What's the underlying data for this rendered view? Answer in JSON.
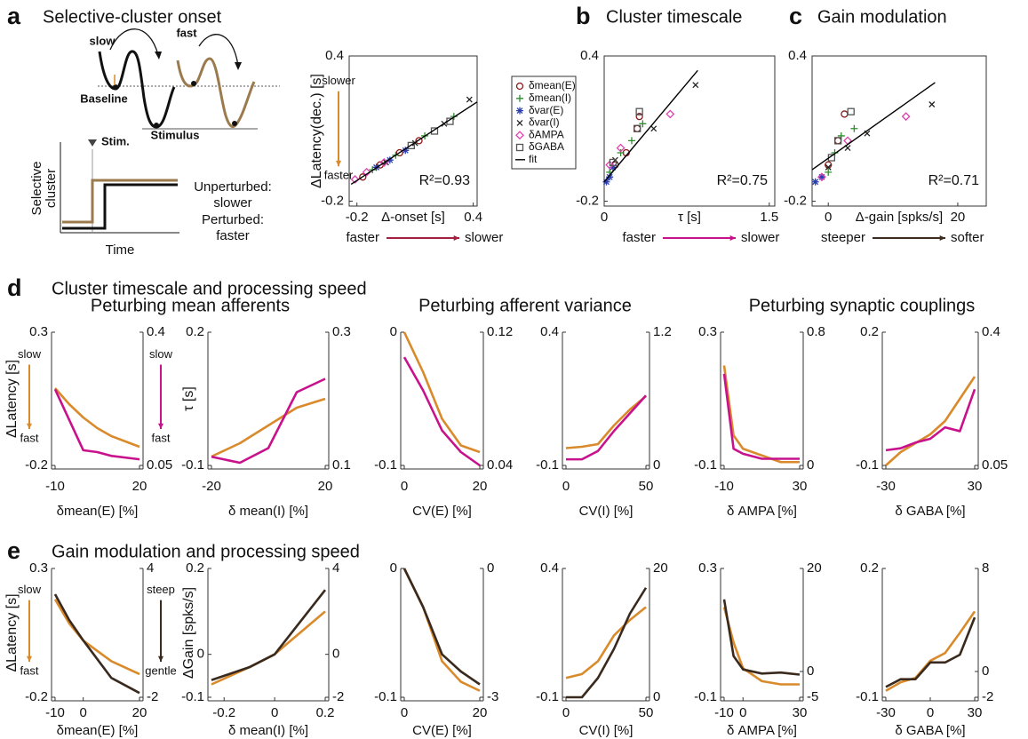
{
  "figure": {
    "panels": [
      {
        "letter": "a",
        "title": "Selective-cluster onset"
      },
      {
        "letter": "b",
        "title": "Cluster timescale"
      },
      {
        "letter": "c",
        "title": "Gain modulation"
      },
      {
        "letter": "d",
        "title": "Cluster timescale and processing speed"
      },
      {
        "letter": "e",
        "title": "Gain modulation and processing speed"
      }
    ],
    "groups": [
      "Peturbing mean afferents",
      "Peturbing afferent variance",
      "Peturbing synaptic couplings"
    ],
    "schematic": {
      "slow": "slow",
      "fast": "fast",
      "baseline": "Baseline",
      "stimulus": "Stimulus",
      "stim": "Stim.",
      "ylabel": [
        "Selective",
        "cluster"
      ],
      "xlabel": "Time",
      "unperturbed": "Unperturbed:",
      "unperturbed_speed": "slower",
      "perturbed": "Perturbed:",
      "perturbed_speed": "faster"
    }
  },
  "chart_data": [
    {
      "type": "scatter",
      "ylabel": "ΔLatency(dec.) [s]",
      "yends": [
        "slower",
        "faster"
      ],
      "xlabel": "Δ-onset [s]",
      "annotation": "R²=0.93",
      "direction": [
        "faster",
        "slower"
      ],
      "xcolor": "#a3213f",
      "ycolor": "#d98a2b",
      "legend": "right",
      "xlim": [
        -0.24,
        0.42
      ],
      "xticks": [
        -0.2,
        0.4
      ],
      "ylim": [
        -0.22,
        0.4
      ],
      "yticks": [
        -0.2,
        0.4
      ],
      "series": [
        {
          "name": "δmean(E)",
          "marker": "o",
          "color": "#8b1a1a",
          "x": [
            -0.17,
            -0.08,
            0.02,
            0.12
          ],
          "values": [
            -0.1,
            -0.05,
            0.0,
            0.05
          ]
        },
        {
          "name": "δmean(I)",
          "marker": "+",
          "color": "#2e8b2e",
          "x": [
            -0.12,
            0.0,
            0.15,
            0.3
          ],
          "values": [
            -0.07,
            -0.01,
            0.07,
            0.15
          ]
        },
        {
          "name": "δvar(E)",
          "marker": "*",
          "color": "#2b3fb0",
          "x": [
            -0.1,
            -0.03,
            0.05
          ],
          "values": [
            -0.06,
            -0.03,
            0.01
          ]
        },
        {
          "name": "δvar(I)",
          "marker": "x",
          "color": "#222222",
          "x": [
            -0.05,
            0.1,
            0.25,
            0.38
          ],
          "values": [
            -0.04,
            0.04,
            0.12,
            0.22
          ]
        },
        {
          "name": "δAMPA",
          "marker": "diamond",
          "color": "#e040b0",
          "x": [
            -0.21,
            -0.15,
            -0.06
          ],
          "values": [
            -0.11,
            -0.08,
            -0.04
          ]
        },
        {
          "name": "δGABA",
          "marker": "square",
          "color": "#555555",
          "x": [
            0.08,
            0.2,
            0.28
          ],
          "values": [
            0.03,
            0.09,
            0.13
          ]
        },
        {
          "name": "fit",
          "marker": "line",
          "color": "#000000",
          "x": [
            -0.23,
            0.42
          ],
          "values": [
            -0.13,
            0.21
          ]
        }
      ]
    },
    {
      "type": "scatter",
      "xlabel": "τ [s]",
      "annotation": "R²=0.75",
      "direction": [
        "faster",
        "slower"
      ],
      "xcolor": "#c8128c",
      "ycolor": "#d98a2b",
      "xlim": [
        0,
        1.55
      ],
      "xticks": [
        0,
        1.5
      ],
      "ylim": [
        -0.22,
        0.4
      ],
      "yticks": [
        -0.2,
        0.4
      ],
      "series": [
        {
          "marker": "o",
          "color": "#8b1a1a",
          "x": [
            0.1,
            0.2,
            0.3,
            0.32
          ],
          "values": [
            -0.05,
            0.0,
            0.1,
            0.15
          ]
        },
        {
          "marker": "+",
          "color": "#2e8b2e",
          "x": [
            0.05,
            0.15,
            0.25,
            0.35
          ],
          "values": [
            -0.08,
            0.0,
            0.05,
            0.12
          ]
        },
        {
          "marker": "*",
          "color": "#2b3fb0",
          "x": [
            0.02,
            0.05,
            0.08
          ],
          "values": [
            -0.12,
            -0.1,
            -0.06
          ]
        },
        {
          "marker": "x",
          "color": "#222222",
          "x": [
            0.1,
            0.45,
            0.83
          ],
          "values": [
            -0.03,
            0.1,
            0.28
          ]
        },
        {
          "marker": "diamond",
          "color": "#e040b0",
          "x": [
            0.05,
            0.15,
            0.6
          ],
          "values": [
            -0.05,
            0.02,
            0.16
          ]
        },
        {
          "marker": "square",
          "color": "#555555",
          "x": [
            0.08,
            0.3,
            0.32
          ],
          "values": [
            -0.04,
            0.1,
            0.17
          ]
        },
        {
          "marker": "line",
          "color": "#000000",
          "x": [
            0,
            0.85
          ],
          "values": [
            -0.12,
            0.34
          ]
        }
      ]
    },
    {
      "type": "scatter",
      "xlabel": "Δ-gain [spks/s]",
      "annotation": "R²=0.71",
      "direction": [
        "steeper",
        "softer"
      ],
      "xcolor": "#3d2b1f",
      "ycolor": "#d98a2b",
      "xlim": [
        -2.5,
        24.4
      ],
      "xticks": [
        0,
        20
      ],
      "ylim": [
        -0.22,
        0.4
      ],
      "yticks": [
        -0.2,
        0.4
      ],
      "series": [
        {
          "marker": "o",
          "color": "#8b1a1a",
          "x": [
            0,
            1.5,
            2.5
          ],
          "values": [
            -0.05,
            0.05,
            0.16
          ]
        },
        {
          "marker": "+",
          "color": "#2e8b2e",
          "x": [
            0,
            1,
            2,
            4
          ],
          "values": [
            -0.08,
            0.0,
            0.07,
            0.1
          ]
        },
        {
          "marker": "*",
          "color": "#2b3fb0",
          "x": [
            -2,
            -1
          ],
          "values": [
            -0.12,
            -0.1
          ]
        },
        {
          "marker": "x",
          "color": "#222222",
          "x": [
            0,
            3,
            6,
            16
          ],
          "values": [
            -0.06,
            0.02,
            0.08,
            0.2
          ]
        },
        {
          "marker": "diamond",
          "color": "#e040b0",
          "x": [
            -1,
            3,
            12
          ],
          "values": [
            -0.1,
            0.05,
            0.15
          ]
        },
        {
          "marker": "square",
          "color": "#555555",
          "x": [
            0.5,
            1.5,
            3.5
          ],
          "values": [
            -0.02,
            0.05,
            0.17
          ]
        },
        {
          "marker": "line",
          "color": "#000000",
          "x": [
            -2.5,
            16.5
          ],
          "values": [
            -0.07,
            0.29
          ]
        }
      ]
    },
    {
      "type": "line",
      "xlabel": "δmean(E) [%]",
      "ylabel": "ΔLatency [s]",
      "yends": [
        "slow",
        "fast"
      ],
      "y2label": "τ [s]",
      "y2ends": [
        "slow",
        "fast"
      ],
      "x": [
        -10,
        -5,
        0,
        5,
        10,
        20
      ],
      "xlim": [
        -10,
        20
      ],
      "xticks": [
        -10,
        20
      ],
      "ylim": [
        -0.2,
        0.3
      ],
      "yticks": [
        -0.2,
        0.3
      ],
      "y2lim": [
        0.05,
        0.4
      ],
      "y2ticks": [
        0.05,
        0.4
      ],
      "series": [
        {
          "color": "#d98a2b",
          "values": [
            0.09,
            0.03,
            -0.02,
            -0.06,
            -0.09,
            -0.13
          ]
        },
        {
          "color": "#c8128c",
          "axis": "y2",
          "values": [
            0.25,
            0.17,
            0.09,
            0.085,
            0.075,
            0.066
          ]
        }
      ]
    },
    {
      "type": "line",
      "xlabel": "δ mean(I) [%]",
      "x": [
        -20,
        -10,
        0,
        10,
        20
      ],
      "xlim": [
        -20,
        20
      ],
      "xticks": [
        -20,
        20
      ],
      "ylim": [
        -0.1,
        0.2
      ],
      "yticks": [
        -0.1,
        0.2
      ],
      "y2lim": [
        0.1,
        0.3
      ],
      "y2ticks": [
        0.1,
        0.3
      ],
      "series": [
        {
          "color": "#d98a2b",
          "values": [
            -0.08,
            -0.05,
            -0.01,
            0.03,
            0.05
          ]
        },
        {
          "color": "#c8128c",
          "axis": "y2",
          "values": [
            0.113,
            0.104,
            0.126,
            0.21,
            0.23
          ]
        }
      ]
    },
    {
      "type": "line",
      "xlabel": "CV(E) [%]",
      "x": [
        0,
        5,
        10,
        15,
        20
      ],
      "xlim": [
        0,
        20
      ],
      "xticks": [
        0,
        20
      ],
      "ylim": [
        -0.1,
        0
      ],
      "yticks": [
        -0.1,
        0
      ],
      "y2lim": [
        0.04,
        0.12
      ],
      "y2ticks": [
        0.04,
        0.12
      ],
      "series": [
        {
          "color": "#d98a2b",
          "values": [
            0,
            -0.03,
            -0.065,
            -0.085,
            -0.09
          ]
        },
        {
          "color": "#c8128c",
          "axis": "y2",
          "values": [
            0.105,
            0.085,
            0.061,
            0.048,
            0.04
          ]
        }
      ]
    },
    {
      "type": "line",
      "xlabel": "CV(I) [%]",
      "x": [
        0,
        10,
        20,
        30,
        40,
        50
      ],
      "xlim": [
        0,
        50
      ],
      "xticks": [
        0,
        50
      ],
      "ylim": [
        -0.1,
        0.4
      ],
      "yticks": [
        -0.1,
        0.4
      ],
      "y2lim": [
        0,
        1.2
      ],
      "y2ticks": [
        0,
        1.2
      ],
      "series": [
        {
          "color": "#d98a2b",
          "values": [
            -0.035,
            -0.03,
            -0.02,
            0.05,
            0.11,
            0.16
          ]
        },
        {
          "color": "#c8128c",
          "axis": "y2",
          "values": [
            0.055,
            0.055,
            0.13,
            0.31,
            0.47,
            0.63
          ]
        }
      ]
    },
    {
      "type": "line",
      "xlabel": "δ AMPA [%]",
      "x": [
        -10,
        -5,
        0,
        10,
        20,
        30
      ],
      "xlim": [
        -10,
        30
      ],
      "xticks": [
        -10,
        30
      ],
      "ylim": [
        -0.1,
        0.3
      ],
      "yticks": [
        -0.1,
        0.3
      ],
      "y2lim": [
        0,
        0.8
      ],
      "y2ticks": [
        0,
        0.8
      ],
      "series": [
        {
          "color": "#d98a2b",
          "values": [
            0.2,
            -0.01,
            -0.05,
            -0.07,
            -0.09,
            -0.09
          ]
        },
        {
          "color": "#c8128c",
          "axis": "y2",
          "values": [
            0.55,
            0.1,
            0.07,
            0.04,
            0.04,
            0.04
          ]
        }
      ]
    },
    {
      "type": "line",
      "xlabel": "δ GABA [%]",
      "x": [
        -30,
        -20,
        -10,
        0,
        10,
        20,
        30
      ],
      "xlim": [
        -30,
        30
      ],
      "xticks": [
        -30,
        30
      ],
      "ylim": [
        -0.1,
        0.2
      ],
      "yticks": [
        -0.1,
        0.2
      ],
      "y2lim": [
        0.05,
        0.4
      ],
      "y2ticks": [
        0.05,
        0.4
      ],
      "series": [
        {
          "color": "#d98a2b",
          "values": [
            -0.1,
            -0.07,
            -0.05,
            -0.03,
            0.0,
            0.05,
            0.1
          ]
        },
        {
          "color": "#c8128c",
          "axis": "y2",
          "values": [
            0.09,
            0.095,
            0.11,
            0.12,
            0.15,
            0.14,
            0.25
          ]
        }
      ]
    },
    {
      "type": "line",
      "xlabel": "δmean(E) [%]",
      "ylabel": "ΔLatency [s]",
      "yends": [
        "slow",
        "fast"
      ],
      "y2label": "ΔGain [spks/s]",
      "y2ends": [
        "steep",
        "gentle"
      ],
      "x": [
        -10,
        -5,
        0,
        10,
        20
      ],
      "xlim": [
        -10,
        20
      ],
      "xticks": [
        -10,
        0,
        20
      ],
      "ylim": [
        -0.2,
        0.3
      ],
      "yticks": [
        -0.2,
        0.3
      ],
      "y2lim": [
        -2,
        4
      ],
      "y2ticks": [
        -2,
        4
      ],
      "series": [
        {
          "color": "#d98a2b",
          "values": [
            0.18,
            0.087,
            0.02,
            -0.06,
            -0.11
          ]
        },
        {
          "color": "#3a2a1e",
          "axis": "y2",
          "values": [
            2.8,
            1.6,
            0.65,
            -1.1,
            -1.8
          ]
        }
      ]
    },
    {
      "type": "line",
      "xlabel": "δ mean(I) [%]",
      "x": [
        -0.25,
        -0.1,
        0,
        0.1,
        0.2
      ],
      "xlim": [
        -0.25,
        0.2
      ],
      "xticks": [
        -0.2,
        0,
        0.2
      ],
      "ylim": [
        -0.1,
        0.2
      ],
      "yticks": [
        -0.1,
        0,
        0.2
      ],
      "y2lim": [
        -2,
        4
      ],
      "y2ticks": [
        -2,
        0,
        4
      ],
      "series": [
        {
          "color": "#d98a2b",
          "values": [
            -0.07,
            -0.03,
            0.0,
            0.05,
            0.1
          ]
        },
        {
          "color": "#3a2a1e",
          "axis": "y2",
          "values": [
            -1.2,
            -0.6,
            0,
            1.5,
            3
          ]
        }
      ]
    },
    {
      "type": "line",
      "xlabel": "CV(E) [%]",
      "x": [
        0,
        5,
        10,
        15,
        20
      ],
      "xlim": [
        0,
        20
      ],
      "xticks": [
        0,
        20
      ],
      "ylim": [
        -0.1,
        0
      ],
      "yticks": [
        -0.1,
        0
      ],
      "y2lim": [
        -3,
        0
      ],
      "y2ticks": [
        -3,
        0
      ],
      "series": [
        {
          "color": "#d98a2b",
          "values": [
            0,
            -0.03,
            -0.072,
            -0.088,
            -0.095
          ]
        },
        {
          "color": "#3a2a1e",
          "axis": "y2",
          "values": [
            0,
            -0.9,
            -2.0,
            -2.4,
            -2.7
          ]
        }
      ]
    },
    {
      "type": "line",
      "xlabel": "CV(I) [%]",
      "x": [
        0,
        10,
        20,
        30,
        40,
        50
      ],
      "xlim": [
        0,
        50
      ],
      "xticks": [
        0,
        50
      ],
      "ylim": [
        -0.1,
        0.4
      ],
      "yticks": [
        -0.1,
        0.4
      ],
      "y2lim": [
        0,
        20
      ],
      "y2ticks": [
        0,
        20
      ],
      "series": [
        {
          "color": "#d98a2b",
          "values": [
            -0.025,
            -0.01,
            0.04,
            0.14,
            0.2,
            0.25
          ]
        },
        {
          "color": "#3a2a1e",
          "axis": "y2",
          "values": [
            0,
            0,
            3,
            7.5,
            13,
            17
          ]
        }
      ]
    },
    {
      "type": "line",
      "xlabel": "δ AMPA [%]",
      "x": [
        -10,
        -5,
        0,
        10,
        20,
        30
      ],
      "xlim": [
        -10,
        30
      ],
      "xticks": [
        -10,
        0,
        30
      ],
      "ylim": [
        -0.1,
        0.3
      ],
      "yticks": [
        -0.1,
        0.3
      ],
      "y2lim": [
        -5,
        20
      ],
      "y2ticks": [
        -5,
        0,
        20
      ],
      "series": [
        {
          "color": "#d98a2b",
          "values": [
            0.18,
            0.07,
            -0.01,
            -0.05,
            -0.06,
            -0.06
          ]
        },
        {
          "color": "#3a2a1e",
          "axis": "y2",
          "values": [
            14,
            3,
            0.4,
            -0.4,
            -0.2,
            -0.6
          ]
        }
      ]
    },
    {
      "type": "line",
      "xlabel": "δ GABA [%]",
      "x": [
        -30,
        -20,
        -10,
        0,
        10,
        20,
        30
      ],
      "xlim": [
        -30,
        30
      ],
      "xticks": [
        -30,
        0,
        30
      ],
      "ylim": [
        -0.1,
        0.2
      ],
      "yticks": [
        -0.1,
        0.2
      ],
      "y2lim": [
        -2,
        8
      ],
      "y2ticks": [
        -2,
        0,
        8
      ],
      "series": [
        {
          "color": "#d98a2b",
          "values": [
            -0.085,
            -0.065,
            -0.055,
            -0.015,
            0.003,
            0.05,
            0.1
          ]
        },
        {
          "color": "#3a2a1e",
          "axis": "y2",
          "values": [
            -1.2,
            -0.6,
            -0.6,
            0.7,
            0.7,
            1.3,
            4.2
          ]
        }
      ]
    }
  ]
}
